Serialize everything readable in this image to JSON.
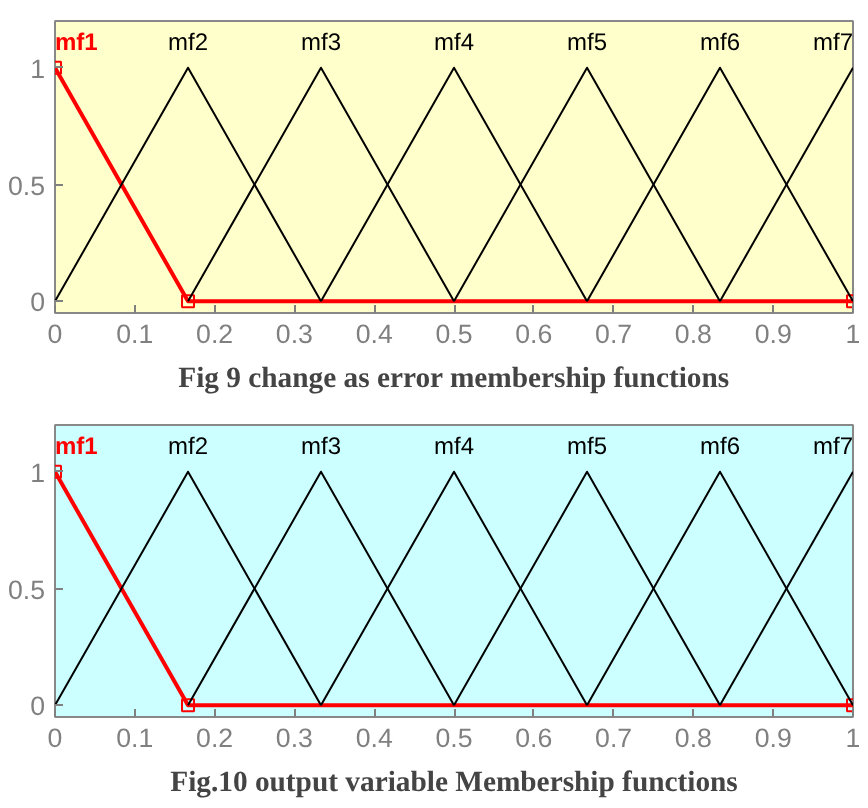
{
  "chart_data": [
    {
      "type": "line",
      "annotations": [
        "Fig 9 change as error membership functions"
      ],
      "xlim": [
        0,
        1
      ],
      "ylim": [
        -0.05,
        1.2
      ],
      "xticks": [
        0,
        0.1,
        0.2,
        0.3,
        0.4,
        0.5,
        0.6,
        0.7,
        0.8,
        0.9,
        1
      ],
      "yticks": [
        0,
        0.5,
        1
      ],
      "grid": false,
      "series": [
        {
          "name": "mf1",
          "color": "#ff0000",
          "x": [
            0,
            0.1667,
            1
          ],
          "values": [
            1,
            0,
            0
          ],
          "marker": "square"
        },
        {
          "name": "mf2",
          "color": "#000000",
          "x": [
            0,
            0.1667,
            0.3333
          ],
          "values": [
            0,
            1,
            0
          ]
        },
        {
          "name": "mf3",
          "color": "#000000",
          "x": [
            0.1667,
            0.3333,
            0.5
          ],
          "values": [
            0,
            1,
            0
          ]
        },
        {
          "name": "mf4",
          "color": "#000000",
          "x": [
            0.3333,
            0.5,
            0.6667
          ],
          "values": [
            0,
            1,
            0
          ]
        },
        {
          "name": "mf5",
          "color": "#000000",
          "x": [
            0.5,
            0.6667,
            0.8333
          ],
          "values": [
            0,
            1,
            0
          ]
        },
        {
          "name": "mf6",
          "color": "#000000",
          "x": [
            0.6667,
            0.8333,
            1
          ],
          "values": [
            0,
            1,
            0
          ]
        },
        {
          "name": "mf7",
          "color": "#000000",
          "x": [
            0.8333,
            1
          ],
          "values": [
            0,
            1
          ]
        }
      ]
    },
    {
      "type": "line",
      "annotations": [
        "Fig.10 output variable Membership functions"
      ],
      "xlim": [
        0,
        1
      ],
      "ylim": [
        -0.05,
        1.2
      ],
      "xticks": [
        0,
        0.1,
        0.2,
        0.3,
        0.4,
        0.5,
        0.6,
        0.7,
        0.8,
        0.9,
        1
      ],
      "yticks": [
        0,
        0.5,
        1
      ],
      "grid": false,
      "series": [
        {
          "name": "mf1",
          "color": "#ff0000",
          "x": [
            0,
            0.1667,
            1
          ],
          "values": [
            1,
            0,
            0
          ],
          "marker": "square"
        },
        {
          "name": "mf2",
          "color": "#000000",
          "x": [
            0,
            0.1667,
            0.3333
          ],
          "values": [
            0,
            1,
            0
          ]
        },
        {
          "name": "mf3",
          "color": "#000000",
          "x": [
            0.1667,
            0.3333,
            0.5
          ],
          "values": [
            0,
            1,
            0
          ]
        },
        {
          "name": "mf4",
          "color": "#000000",
          "x": [
            0.3333,
            0.5,
            0.6667
          ],
          "values": [
            0,
            1,
            0
          ]
        },
        {
          "name": "mf5",
          "color": "#000000",
          "x": [
            0.5,
            0.6667,
            0.8333
          ],
          "values": [
            0,
            1,
            0
          ]
        },
        {
          "name": "mf6",
          "color": "#000000",
          "x": [
            0.6667,
            0.8333,
            1
          ],
          "values": [
            0,
            1,
            0
          ]
        },
        {
          "name": "mf7",
          "color": "#000000",
          "x": [
            0.8333,
            1
          ],
          "values": [
            0,
            1
          ]
        }
      ]
    }
  ]
}
